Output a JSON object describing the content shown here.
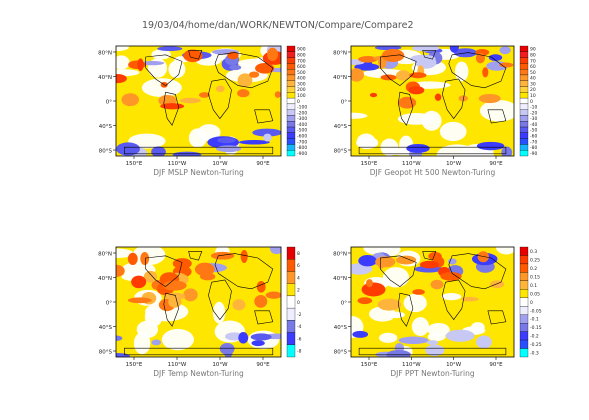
{
  "page": {
    "header": "19/03/04/home/dan/WORK/NEWTON/Compare/Compare2"
  },
  "palette": {
    "positive": [
      "#ffe600",
      "#ffd23c",
      "#ffb43c",
      "#ff9628",
      "#ff7814",
      "#ff5a00",
      "#ff3c00",
      "#f01e1e",
      "#e60000"
    ],
    "negative": [
      "#eeeeff",
      "#c8c8f5",
      "#a0a0ef",
      "#7878e6",
      "#5a5af0",
      "#3c3cff",
      "#2850ff",
      "#14b4ff",
      "#00ffff"
    ],
    "zero_band": "#ffffff",
    "ocean_default": "#ffe600",
    "land_line": "#000000"
  },
  "chart_data": [
    {
      "type": "heatmap",
      "title": "DJF MSLP Newton-Turing",
      "x_ticks": [
        "150°E",
        "110°W",
        "10°W",
        "90°E"
      ],
      "y_ticks": [
        "80°N",
        "40°N",
        "0°",
        "40°S",
        "80°S"
      ],
      "colorbar_labels": [
        "900",
        "800",
        "700",
        "600",
        "500",
        "400",
        "300",
        "200",
        "100",
        "0",
        "-100",
        "-200",
        "-300",
        "-400",
        "-500",
        "-600",
        "-700",
        "-800",
        "-900"
      ],
      "positive_coverage": 0.62,
      "negative_coverage": 0.22
    },
    {
      "type": "heatmap",
      "title": "DJF Geopot Ht 500 Newton-Turing",
      "x_ticks": [
        "150°E",
        "110°W",
        "10°W",
        "90°E"
      ],
      "y_ticks": [
        "80°N",
        "40°N",
        "0°",
        "40°S",
        "80°S"
      ],
      "colorbar_labels": [
        "90",
        "80",
        "70",
        "60",
        "50",
        "40",
        "30",
        "20",
        "10",
        "0",
        "-10",
        "-20",
        "-30",
        "-40",
        "-50",
        "-60",
        "-70",
        "-80",
        "-90"
      ],
      "positive_coverage": 0.65,
      "negative_coverage": 0.22
    },
    {
      "type": "heatmap",
      "title": "DJF Temp Newton-Turing",
      "x_ticks": [
        "150°E",
        "110°W",
        "10°W",
        "90°E"
      ],
      "y_ticks": [
        "80°N",
        "40°N",
        "0°",
        "40°S",
        "80°S"
      ],
      "colorbar_labels": [
        "8",
        "6",
        "4",
        "2",
        "0",
        "-2",
        "-4",
        "-6",
        "-8"
      ],
      "positive_coverage": 0.88,
      "negative_coverage": 0.1
    },
    {
      "type": "heatmap",
      "title": "DJF PPT Newton-Turing",
      "x_ticks": [
        "150°E",
        "110°W",
        "10°W",
        "90°E"
      ],
      "y_ticks": [
        "80°N",
        "40°N",
        "0°",
        "40°S",
        "80°S"
      ],
      "colorbar_labels": [
        "0.3",
        "0.25",
        "0.2",
        "0.15",
        "0.1",
        "0.05",
        "0",
        "-0.05",
        "-0.1",
        "-0.15",
        "-0.2",
        "-0.25",
        "-0.3"
      ],
      "positive_coverage": 0.55,
      "negative_coverage": 0.2
    }
  ]
}
